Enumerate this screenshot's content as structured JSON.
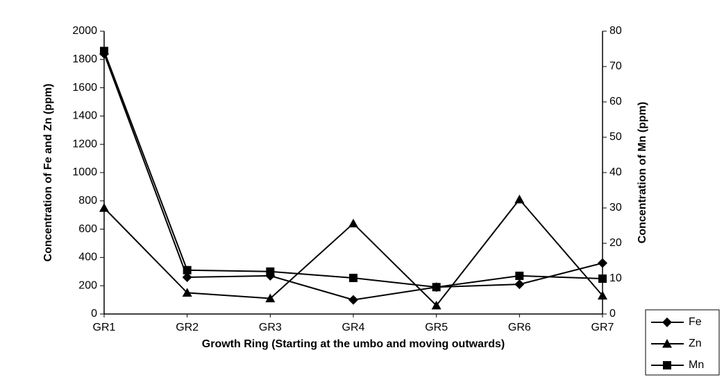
{
  "chart_data": {
    "type": "line",
    "categories": [
      "GR1",
      "GR2",
      "GR3",
      "GR4",
      "GR5",
      "GR6",
      "GR7"
    ],
    "x_label": "Growth Ring (Starting at the umbo and moving outwards)",
    "y_label": "Concentration of Fe and Zn (ppm)",
    "y2_label": "Concentration of Mn (ppm)",
    "ylim": [
      0,
      2000
    ],
    "yticks": [
      0,
      200,
      400,
      600,
      800,
      1000,
      1200,
      1400,
      1600,
      1800,
      2000
    ],
    "y2lim": [
      0,
      80
    ],
    "y2ticks": [
      0,
      10,
      20,
      30,
      40,
      50,
      60,
      70,
      80
    ],
    "legend": "lower right",
    "series": [
      {
        "name": "Fe",
        "color": "#000000",
        "marker": "diamond",
        "values": [
          1840,
          260,
          270,
          100,
          190,
          210,
          360
        ]
      },
      {
        "name": "Zn",
        "color": "#000000",
        "marker": "triangle",
        "values": [
          750,
          150,
          110,
          640,
          60,
          810,
          130
        ]
      },
      {
        "name": "Mn",
        "color": "#000000",
        "marker": "square",
        "axis": "y2",
        "values": [
          74.4,
          12.4,
          12,
          10.2,
          7.6,
          10.8,
          10
        ]
      }
    ]
  }
}
